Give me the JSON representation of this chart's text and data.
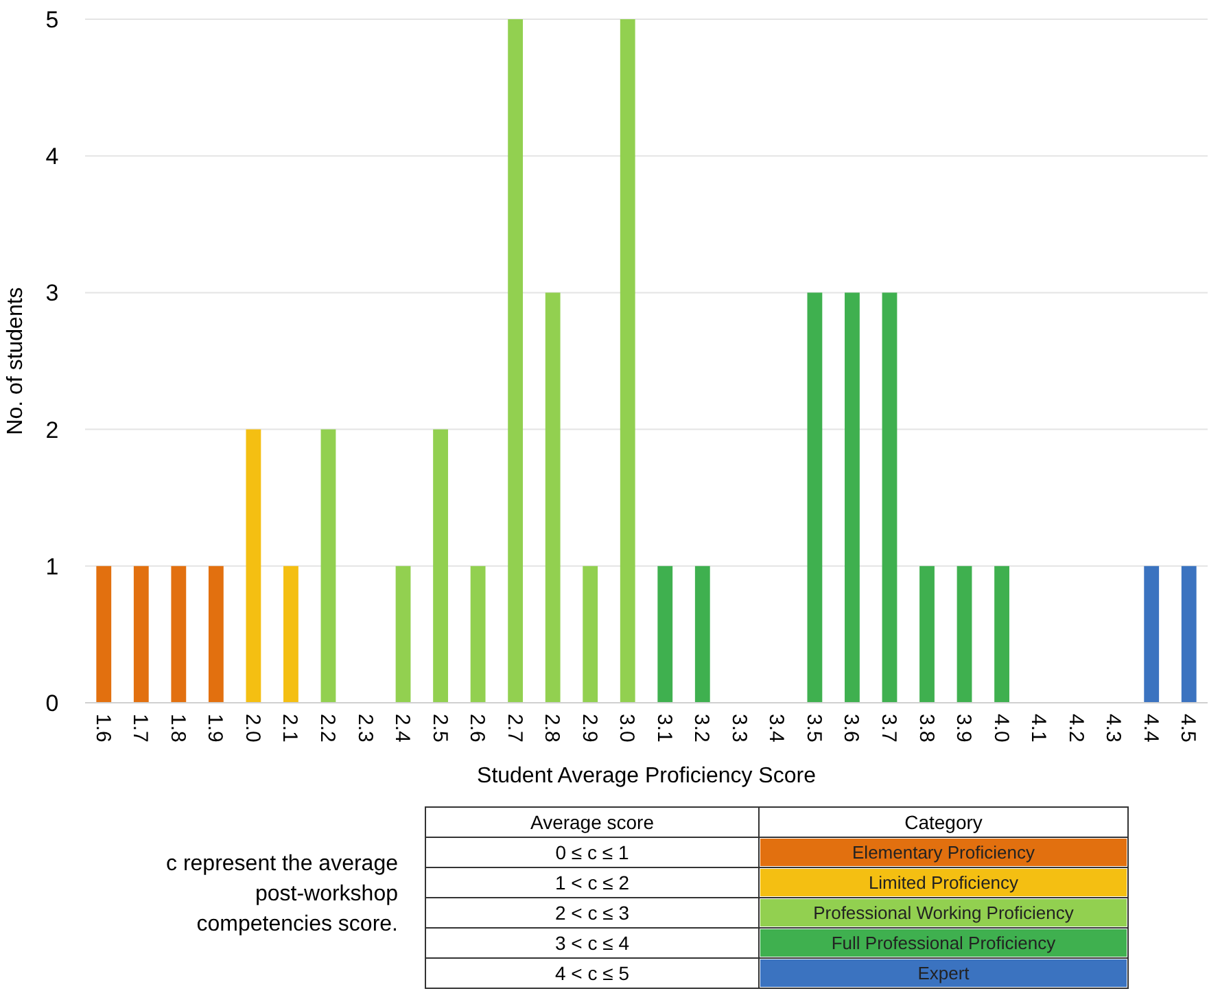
{
  "chart_data": {
    "type": "bar",
    "xlabel": "Student Average Proficiency Score",
    "ylabel": "No. of students",
    "categories": [
      "1.6",
      "1.7",
      "1.8",
      "1.9",
      "2.0",
      "2.1",
      "2.2",
      "2.3",
      "2.4",
      "2.5",
      "2.6",
      "2.7",
      "2.8",
      "2.9",
      "3.0",
      "3.1",
      "3.2",
      "3.3",
      "3.4",
      "3.5",
      "3.6",
      "3.7",
      "3.8",
      "3.9",
      "4.0",
      "4.1",
      "4.2",
      "4.3",
      "4.4",
      "4.5"
    ],
    "series": [
      {
        "name": "Elementary Proficiency",
        "color": "#e2700f",
        "values": [
          1,
          1,
          1,
          1,
          null,
          null,
          null,
          null,
          null,
          null,
          null,
          null,
          null,
          null,
          null,
          null,
          null,
          null,
          null,
          null,
          null,
          null,
          null,
          null,
          null,
          null,
          null,
          null,
          null,
          null
        ]
      },
      {
        "name": "Limited Proficiency",
        "color": "#f4bf12",
        "values": [
          null,
          null,
          null,
          null,
          2,
          1,
          null,
          null,
          null,
          null,
          null,
          null,
          null,
          null,
          null,
          null,
          null,
          null,
          null,
          null,
          null,
          null,
          null,
          null,
          null,
          null,
          null,
          null,
          null,
          null
        ]
      },
      {
        "name": "Professional Working Proficiency",
        "color": "#92d050",
        "values": [
          null,
          null,
          null,
          null,
          null,
          null,
          2,
          0,
          1,
          2,
          1,
          5,
          3,
          1,
          5,
          null,
          null,
          null,
          null,
          null,
          null,
          null,
          null,
          null,
          null,
          null,
          null,
          null,
          null,
          null
        ]
      },
      {
        "name": "Full Professional Proficiency",
        "color": "#3fb04f",
        "values": [
          null,
          null,
          null,
          null,
          null,
          null,
          null,
          null,
          null,
          null,
          null,
          null,
          null,
          null,
          null,
          1,
          1,
          0,
          0,
          3,
          3,
          3,
          1,
          1,
          1,
          null,
          null,
          null,
          null,
          null
        ]
      },
      {
        "name": "Expert",
        "color": "#3b73c0",
        "values": [
          null,
          null,
          null,
          null,
          null,
          null,
          null,
          null,
          null,
          null,
          null,
          null,
          null,
          null,
          null,
          null,
          null,
          null,
          null,
          null,
          null,
          null,
          null,
          null,
          null,
          0,
          0,
          0,
          1,
          1
        ]
      }
    ],
    "ylim": [
      0,
      5
    ],
    "yticks": [
      0,
      1,
      2,
      3,
      4,
      5
    ],
    "grid": "y",
    "legend": "bottom",
    "legend_title": "Category",
    "annotations": [
      "c represent the average post-workshop competencies score.",
      "Average score",
      "0 ≤ c ≤ 1",
      "1 < c ≤ 2",
      "2 < c ≤ 3",
      "3 < c ≤ 4",
      "4 < c ≤ 5"
    ]
  }
}
